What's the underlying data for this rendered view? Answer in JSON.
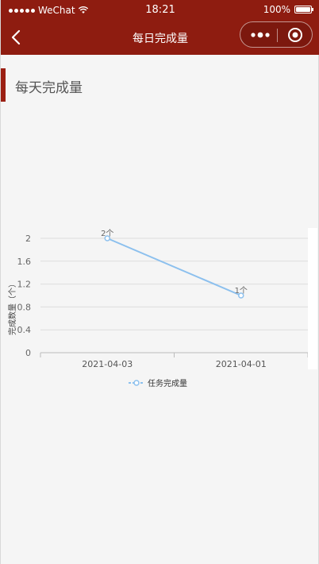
{
  "status_bar": {
    "carrier": "WeChat",
    "time": "18:21",
    "battery": "100%",
    "battery_level": 1.0
  },
  "nav": {
    "title": "每日完成量",
    "back_icon": "chevron-left-icon",
    "more_icon": "more-dots-icon",
    "close_icon": "target-close-icon"
  },
  "section": {
    "title": "每天完成量",
    "accent": "#9b2013"
  },
  "colors": {
    "nav_bg": "#8e1c10",
    "line": "#8cc0ee",
    "grid": "#dddddd"
  },
  "chart_data": {
    "type": "line",
    "categories": [
      "2021-04-03",
      "2021-04-01"
    ],
    "series": [
      {
        "name": "任务完成量",
        "values": [
          2,
          1
        ],
        "data_labels": [
          "2个",
          "1个"
        ]
      }
    ],
    "ylabel": "完成数量（个）",
    "yticks": [
      "0",
      "0.4",
      "0.8",
      "1.2",
      "1.6",
      "2"
    ],
    "ylim": [
      0,
      2
    ],
    "grid": true,
    "legend": "bottom-center"
  }
}
